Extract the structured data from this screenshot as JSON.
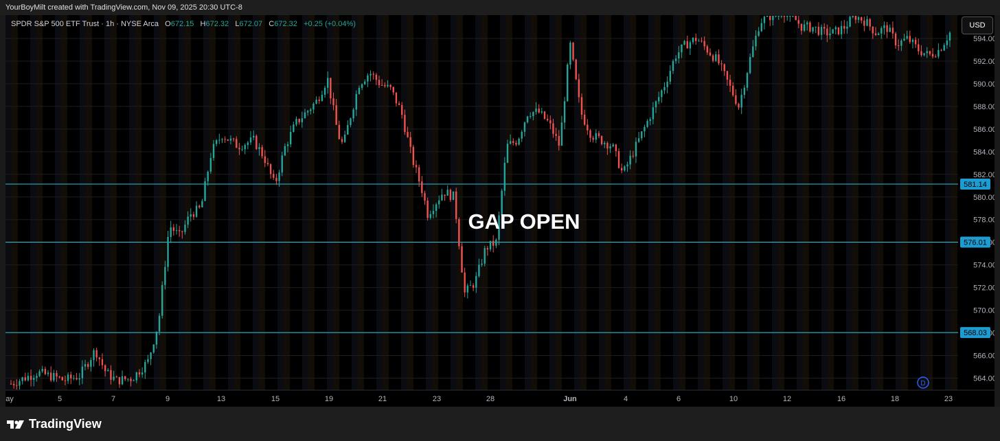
{
  "header": {
    "attribution": "YourBoyMilt created with TradingView.com, Nov 09, 2025 20:30 UTC-8"
  },
  "legend": {
    "symbol": "SPDR S&P 500 ETF Trust · 1h · NYSE Arca",
    "o_label": "O",
    "o_value": "672.15",
    "h_label": "H",
    "h_value": "672.32",
    "l_label": "L",
    "l_value": "672.07",
    "c_label": "C",
    "c_value": "672.32",
    "change": "+0.25 (+0.04%)"
  },
  "currency_button": "USD",
  "annotation": "GAP OPEN",
  "day_marker": "D",
  "brand": {
    "name": "TradingView"
  },
  "colors": {
    "up": "#26a69a",
    "down": "#ef5350",
    "level": "#26c6da",
    "tag": "#1e9bd1"
  },
  "chart_data": {
    "type": "candlestick",
    "title": "SPDR S&P 500 ETF Trust · 1h · NYSE Arca",
    "ylim": [
      563,
      596
    ],
    "y_ticks": [
      "594.00",
      "592.00",
      "590.00",
      "588.00",
      "586.00",
      "584.00",
      "582.00",
      "580.00",
      "578.00",
      "576.00",
      "574.00",
      "572.00",
      "570.00",
      "568.00",
      "566.00",
      "564.00"
    ],
    "x_ticks": [
      "ay",
      "5",
      "7",
      "9",
      "13",
      "15",
      "19",
      "21",
      "23",
      "28",
      "Jun",
      "4",
      "6",
      "10",
      "12",
      "16",
      "18",
      "23"
    ],
    "levels": [
      {
        "label": "581.14",
        "value": 581.14
      },
      {
        "label": "576.01",
        "value": 576.01
      },
      {
        "label": "568.03",
        "value": 568.03
      }
    ],
    "series": [
      {
        "name": "price_path",
        "x": [
          0.0,
          0.5,
          0.9,
          1.0,
          1.3,
          1.6,
          1.8,
          2.0,
          2.3,
          2.6,
          2.8,
          3.0,
          3.2,
          3.4,
          3.6,
          3.8,
          4.0,
          4.3,
          4.6,
          4.8,
          5.0,
          5.2,
          5.4,
          5.6,
          5.8,
          6.0,
          6.2,
          6.3,
          6.4,
          6.6,
          6.8,
          7.0,
          7.2,
          7.4,
          7.6,
          7.8,
          7.9,
          8.2,
          8.4,
          8.6,
          8.8,
          9.0,
          9.2,
          9.4,
          9.6,
          9.8,
          10.0,
          10.2,
          10.4,
          10.6,
          10.8,
          11.0,
          11.2,
          11.4,
          11.6,
          11.8,
          12.0,
          12.2,
          12.4,
          12.6,
          12.8,
          13.0,
          13.2,
          13.4,
          13.6,
          13.8,
          14.0,
          14.2,
          14.4,
          14.6,
          14.8,
          15.0,
          15.2,
          15.4,
          15.6,
          15.8,
          16.0,
          16.2,
          16.4,
          16.6,
          16.8,
          17.0,
          17.2,
          17.4,
          17.6,
          17.8
        ],
        "values": [
          563.5,
          564.5,
          564.0,
          563.8,
          564.2,
          566.5,
          564.5,
          563.8,
          564.0,
          565.5,
          569.0,
          577.5,
          576.5,
          578.5,
          579.0,
          584.0,
          585.5,
          584.5,
          585.0,
          583.5,
          581.0,
          584.5,
          586.5,
          587.5,
          588.5,
          590.5,
          585.5,
          584.5,
          586.5,
          590.0,
          591.0,
          590.0,
          589.5,
          587.5,
          583.5,
          580.5,
          578.5,
          580.5,
          580.0,
          571.5,
          572.5,
          575.5,
          576.0,
          584.5,
          585.0,
          587.5,
          587.5,
          586.5,
          584.5,
          593.5,
          587.5,
          585.5,
          585.0,
          584.5,
          582.0,
          584.0,
          586.0,
          588.0,
          590.0,
          592.5,
          593.5,
          594.0,
          593.0,
          592.0,
          590.0,
          588.0,
          592.0,
          595.5,
          596.0,
          596.5,
          596.0,
          595.0,
          595.0,
          594.5,
          594.5,
          595.0,
          596.0,
          595.5,
          594.5,
          595.0,
          593.5,
          594.0,
          593.0,
          592.5,
          593.0,
          594.5
        ]
      }
    ]
  }
}
